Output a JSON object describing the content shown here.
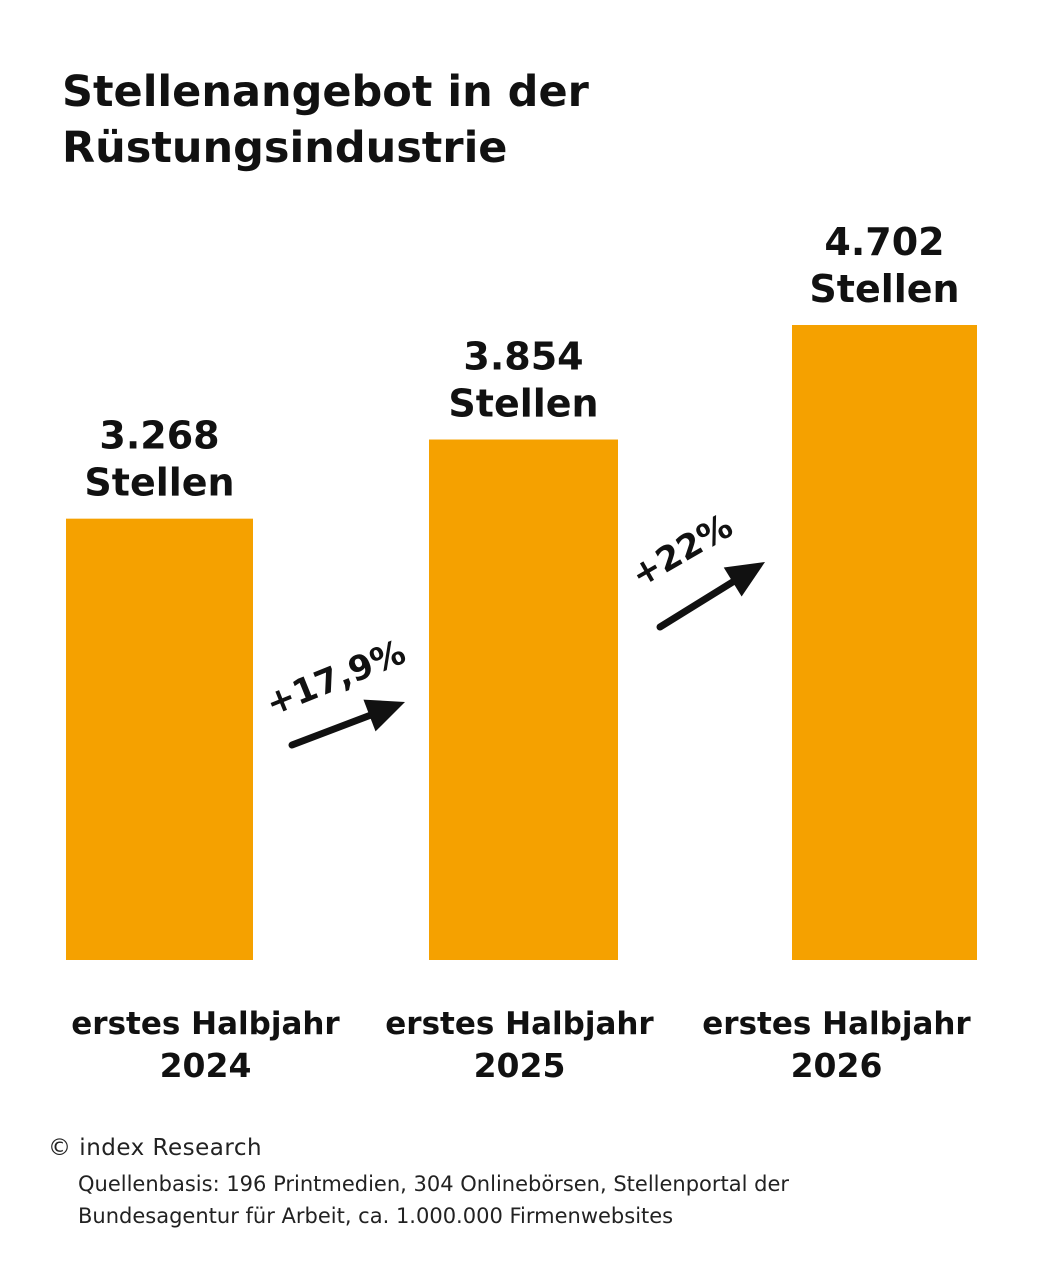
{
  "title": {
    "line1": "Stellenangebot in der",
    "line2": "Rüstungsindustrie"
  },
  "chart_data": {
    "type": "bar",
    "title": "Stellenangebot in der Rüstungsindustrie",
    "categories": [
      [
        "erstes Halbjahr",
        "2024"
      ],
      [
        "erstes Halbjahr",
        "2025"
      ],
      [
        "erstes Halbjahr",
        "2026"
      ]
    ],
    "values": [
      3268,
      3854,
      4702
    ],
    "value_labels": [
      [
        "3.268",
        "Stellen"
      ],
      [
        "3.854",
        "Stellen"
      ],
      [
        "4.702",
        "Stellen"
      ]
    ],
    "changes": [
      "+17,9%",
      "+22%"
    ],
    "ylim": [
      0,
      4702
    ],
    "xlabel": "",
    "ylabel": "",
    "grid": false,
    "bar_color": "#F5A100"
  },
  "footer": {
    "copyright": "© index Research",
    "source_line1": "Quellenbasis: 196 Printmedien, 304 Onlinebörsen, Stellenportal der",
    "source_line2": "Bundesagentur für Arbeit, ca. 1.000.000 Firmenwebsites"
  }
}
